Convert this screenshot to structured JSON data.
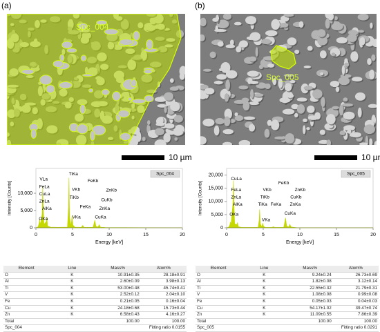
{
  "panels": [
    {
      "label": "(a)",
      "region": "Spc_004",
      "scale_bar": "10 µm"
    },
    {
      "label": "(b)",
      "region": "Spc_005",
      "scale_bar": "10 µm"
    }
  ],
  "chart_data": [
    {
      "type": "line",
      "x_label": "Energy [keV]",
      "y_label": "Intensity [Counts]",
      "x": [
        0,
        0.3,
        0.45,
        0.52,
        0.6,
        0.85,
        0.93,
        1.0,
        1.1,
        1.4,
        1.49,
        1.6,
        2,
        3,
        4.3,
        4.45,
        4.51,
        4.6,
        4.8,
        4.93,
        5.05,
        5.3,
        6.2,
        6.4,
        6.55,
        7.8,
        8.05,
        8.2,
        8.5,
        8.64,
        8.8,
        9.5,
        12,
        15,
        20
      ],
      "series": [
        {
          "name": "Spc_004",
          "color": "#c5d800",
          "values": [
            0,
            300,
            1500,
            2500,
            800,
            4000,
            12000,
            6000,
            1000,
            1800,
            3200,
            500,
            200,
            150,
            200,
            6000,
            14500,
            3000,
            600,
            3500,
            800,
            200,
            150,
            700,
            150,
            150,
            2200,
            400,
            250,
            900,
            200,
            100,
            60,
            30,
            10
          ]
        }
      ],
      "xlim": [
        0,
        20
      ],
      "xticks": [
        0,
        5,
        10,
        15,
        20
      ],
      "ylim": [
        0,
        16000
      ],
      "yticks": [
        0,
        {
          "value": 5000,
          "label": "5,000"
        },
        {
          "value": 10000,
          "label": "10,000"
        }
      ],
      "annotations": [
        {
          "text": "VLa",
          "x": 0.51,
          "y": 14000
        },
        {
          "text": "FeLa",
          "x": 0.45,
          "y": 11800
        },
        {
          "text": "CuLa",
          "x": 0.45,
          "y": 9700
        },
        {
          "text": "ZnLa",
          "x": 0.45,
          "y": 7600
        },
        {
          "text": "AlKa",
          "x": 0.85,
          "y": 5500
        },
        {
          "text": "OKa",
          "x": 0.4,
          "y": 2500
        },
        {
          "text": "TiKa",
          "x": 4.51,
          "y": 15500
        },
        {
          "text": "VKb",
          "x": 4.9,
          "y": 11000
        },
        {
          "text": "TiKb",
          "x": 4.6,
          "y": 8700
        },
        {
          "text": "VKa",
          "x": 4.95,
          "y": 3000
        },
        {
          "text": "FeKb",
          "x": 7.06,
          "y": 13500
        },
        {
          "text": "FeKa",
          "x": 6.0,
          "y": 6000
        },
        {
          "text": "ZnKb",
          "x": 9.57,
          "y": 10800
        },
        {
          "text": "CuKb",
          "x": 8.9,
          "y": 8000
        },
        {
          "text": "ZnKa",
          "x": 8.64,
          "y": 5500
        },
        {
          "text": "CuKa",
          "x": 8.05,
          "y": 3000
        }
      ]
    },
    {
      "type": "line",
      "x_label": "Energy [keV]",
      "y_label": "Intensity [Counts]",
      "x": [
        0,
        0.3,
        0.45,
        0.52,
        0.6,
        0.85,
        0.93,
        1.0,
        1.1,
        1.4,
        1.49,
        1.6,
        2,
        3,
        4.3,
        4.45,
        4.51,
        4.6,
        4.8,
        4.93,
        5.05,
        5.3,
        6.2,
        6.4,
        6.55,
        7.8,
        8.05,
        8.2,
        8.5,
        8.64,
        8.8,
        9.5,
        12,
        15,
        20
      ],
      "series": [
        {
          "name": "Spc_005",
          "color": "#c5d800",
          "values": [
            0,
            300,
            1200,
            2200,
            1200,
            9000,
            18000,
            9000,
            1500,
            1200,
            2000,
            400,
            200,
            150,
            200,
            3000,
            7000,
            1500,
            400,
            1800,
            500,
            200,
            150,
            400,
            150,
            200,
            3800,
            700,
            300,
            1300,
            300,
            100,
            60,
            30,
            10
          ]
        }
      ],
      "xlim": [
        0,
        20
      ],
      "xticks": [
        0,
        5,
        10,
        15,
        20
      ],
      "ylim": [
        0,
        21000
      ],
      "yticks": [
        0,
        {
          "value": 5000,
          "label": "5,000"
        },
        {
          "value": 10000,
          "label": "10,000"
        },
        {
          "value": 15000,
          "label": "15,000"
        },
        {
          "value": 20000,
          "label": "20,000"
        }
      ],
      "annotations": [
        {
          "text": "CuLa",
          "x": 0.6,
          "y": 18500
        },
        {
          "text": "FeLa",
          "x": 0.6,
          "y": 14300
        },
        {
          "text": "ZnLa",
          "x": 0.6,
          "y": 11600
        },
        {
          "text": "AlKa",
          "x": 0.85,
          "y": 8800
        },
        {
          "text": "OKa",
          "x": 0.4,
          "y": 5000
        },
        {
          "text": "VKb",
          "x": 4.95,
          "y": 14300
        },
        {
          "text": "TiKb",
          "x": 4.6,
          "y": 11600
        },
        {
          "text": "TiKa",
          "x": 4.3,
          "y": 8800
        },
        {
          "text": "VKa",
          "x": 4.8,
          "y": 3000
        },
        {
          "text": "FeKb",
          "x": 7.06,
          "y": 17000
        },
        {
          "text": "FeKa",
          "x": 6.0,
          "y": 8800
        },
        {
          "text": "ZnKb",
          "x": 9.3,
          "y": 14300
        },
        {
          "text": "CuKb",
          "x": 8.7,
          "y": 11600
        },
        {
          "text": "ZnKa",
          "x": 8.64,
          "y": 8800
        },
        {
          "text": "CuKa",
          "x": 7.9,
          "y": 5500
        }
      ]
    }
  ],
  "tables": [
    {
      "columns": [
        "Element",
        "Line",
        "Mass%",
        "Atom%"
      ],
      "rows": [
        [
          "O",
          "K",
          "10.91±0.35",
          "28.18±0.91"
        ],
        [
          "Al",
          "K",
          "2.60±0.09",
          "3.98±0.13"
        ],
        [
          "Ti",
          "K",
          "53.00±0.48",
          "45.74±0.41"
        ],
        [
          "V",
          "K",
          "2.52±0.12",
          "2.04±0.10"
        ],
        [
          "Fe",
          "K",
          "0.21±0.05",
          "0.16±0.04"
        ],
        [
          "Cu",
          "K",
          "24.18±0.68",
          "15.73±0.44"
        ],
        [
          "Zn",
          "K",
          "6.58±0.43",
          "4.16±0.27"
        ]
      ],
      "total": {
        "label": "Total",
        "mass": "100.00",
        "atom": "100.00"
      },
      "spectrum": "Spc_004",
      "fitting": "Fitting ratio 0.0155"
    },
    {
      "columns": [
        "Element",
        "Line",
        "Mass%",
        "Atom%"
      ],
      "rows": [
        [
          "O",
          "K",
          "9.24±0.24",
          "26.73±0.69"
        ],
        [
          "Al",
          "K",
          "1.82±0.08",
          "3.12±0.14"
        ],
        [
          "Ti",
          "K",
          "22.55±0.32",
          "21.79±0.31"
        ],
        [
          "V",
          "K",
          "1.08±0.08",
          "0.99±0.08"
        ],
        [
          "Fe",
          "K",
          "0.05±0.03",
          "0.04±0.03"
        ],
        [
          "Cu",
          "K",
          "54.17±1.02",
          "39.47±0.74"
        ],
        [
          "Zn",
          "K",
          "11.09±0.55",
          "7.86±0.39"
        ]
      ],
      "total": {
        "label": "Total",
        "mass": "100.00",
        "atom": "100.00"
      },
      "spectrum": "Spc_005",
      "fitting": "Fitting ratio 0.0291"
    }
  ]
}
